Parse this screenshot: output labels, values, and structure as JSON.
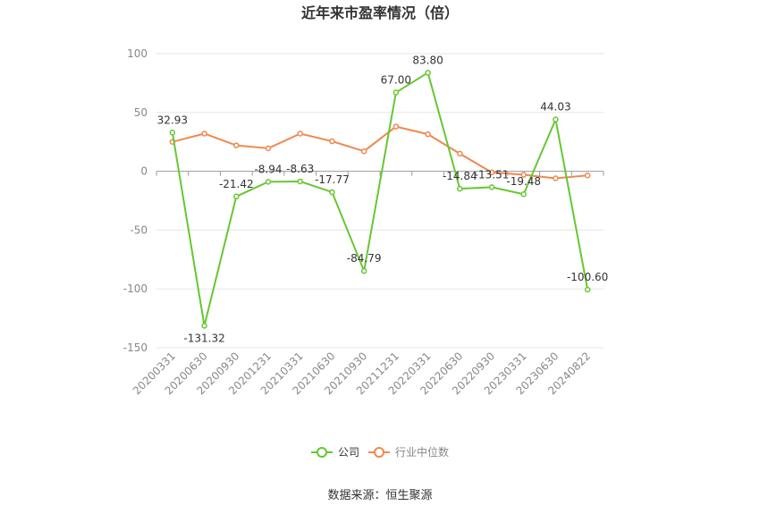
{
  "chart_data": {
    "type": "line",
    "title": "近年来市盈率情况（倍）",
    "categories": [
      "20200331",
      "20200630",
      "20200930",
      "20201231",
      "20210331",
      "20210630",
      "20210930",
      "20211231",
      "20220331",
      "20220630",
      "20220930",
      "20230331",
      "20230630",
      "20240822"
    ],
    "series": [
      {
        "name": "公司",
        "color": "#66c732",
        "values": [
          32.93,
          -131.32,
          -21.42,
          -8.94,
          -8.63,
          -17.77,
          -84.79,
          67.0,
          83.8,
          -14.84,
          -13.51,
          -19.48,
          44.03,
          -100.6
        ],
        "labels": [
          "32.93",
          "-131.32",
          "-21.42",
          "-8.94",
          "-8.63",
          "-17.77",
          "-84.79",
          "67.00",
          "83.80",
          "-14.84",
          "-13.51",
          "-19.48",
          "44.03",
          "-100.60"
        ]
      },
      {
        "name": "行业中位数",
        "color": "#f08850",
        "values": [
          25,
          32,
          22,
          19.5,
          32,
          25.5,
          17,
          38,
          31.5,
          15,
          -1,
          -3,
          -6,
          -3.5
        ]
      }
    ],
    "ylim": [
      -150,
      100
    ],
    "yticks": [
      "100",
      "50",
      "0",
      "-50",
      "-100",
      "-150"
    ],
    "grid": true,
    "legend_position": "bottom"
  },
  "source_text": "数据来源：恒生聚源"
}
